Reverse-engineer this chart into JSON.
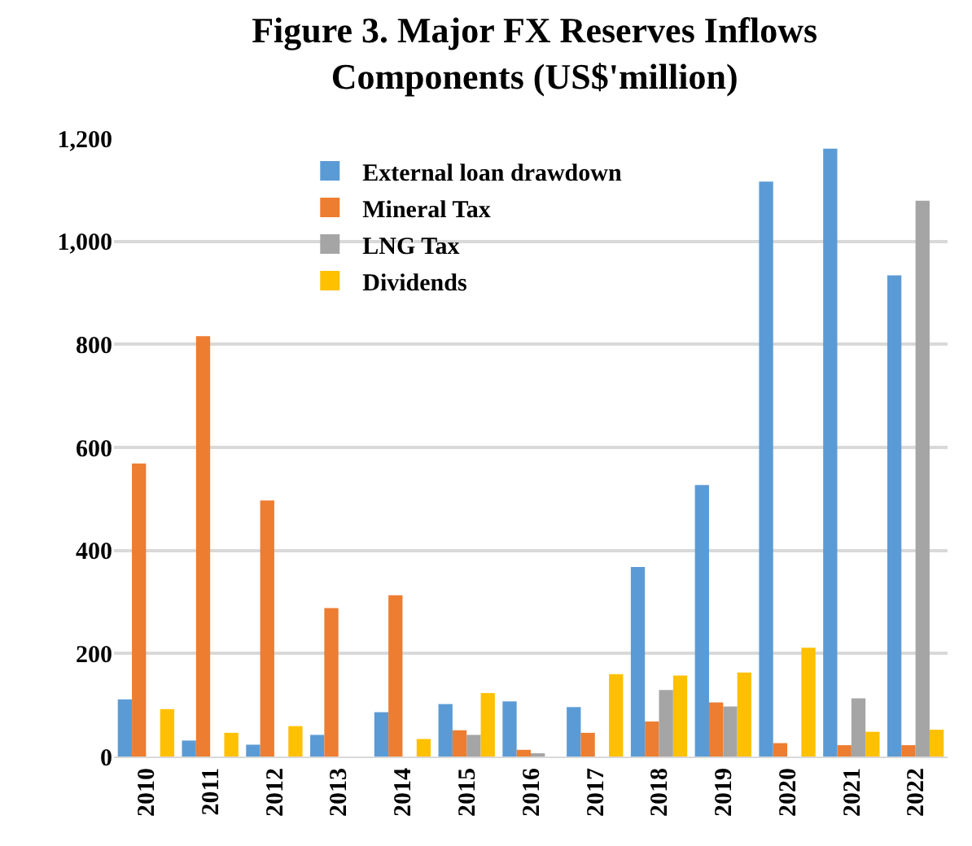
{
  "chart_data": {
    "type": "bar",
    "title": "Figure 3. Major FX Reserves Inflows Components (US$'million)",
    "categories": [
      "2010",
      "2011",
      "2012",
      "2013",
      "2014",
      "2015",
      "2016",
      "2017",
      "2018",
      "2019",
      "2020",
      "2021",
      "2022"
    ],
    "series": [
      {
        "name": "External loan drawdown",
        "color": "#5b9bd5",
        "values": [
          111,
          31,
          23,
          42,
          86,
          102,
          107,
          96,
          368,
          527,
          1116,
          1180,
          934
        ]
      },
      {
        "name": "Mineral Tax",
        "color": "#ed7d31",
        "values": [
          569,
          816,
          497,
          288,
          313,
          51,
          13,
          46,
          68,
          105,
          26,
          22,
          22
        ]
      },
      {
        "name": "LNG Tax",
        "color": "#a5a5a5",
        "values": [
          null,
          null,
          null,
          null,
          null,
          42,
          5,
          null,
          129,
          97,
          null,
          113,
          1079
        ]
      },
      {
        "name": "Dividends",
        "color": "#ffc000",
        "values": [
          92,
          46,
          59,
          null,
          34,
          123,
          null,
          160,
          157,
          163,
          211,
          48,
          52
        ]
      }
    ],
    "ylim": [
      0,
      1200
    ],
    "yticks": [
      {
        "value": 0,
        "label": "0"
      },
      {
        "value": 200,
        "label": "200"
      },
      {
        "value": 400,
        "label": "400"
      },
      {
        "value": 600,
        "label": "600"
      },
      {
        "value": 800,
        "label": "800"
      },
      {
        "value": 1000,
        "label": "1,000"
      },
      {
        "value": 1200,
        "label": "1,200"
      }
    ],
    "grid": "y",
    "legend": "top left"
  }
}
